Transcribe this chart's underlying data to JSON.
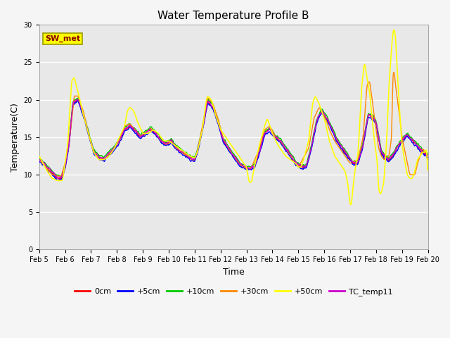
{
  "title": "Water Temperature Profile B",
  "xlabel": "Time",
  "ylabel": "Temperature(C)",
  "ylim": [
    0,
    30
  ],
  "yticks": [
    0,
    5,
    10,
    15,
    20,
    25,
    30
  ],
  "x_labels": [
    "Feb 5",
    "Feb 6",
    "Feb 7",
    "Feb 8",
    "Feb 9",
    "Feb 10",
    "Feb 11",
    "Feb 12",
    "Feb 13",
    "Feb 14",
    "Feb 15",
    "Feb 16",
    "Feb 17",
    "Feb 18",
    "Feb 19",
    "Feb 20"
  ],
  "legend_labels": [
    "0cm",
    "+5cm",
    "+10cm",
    "+30cm",
    "+50cm",
    "TC_temp11"
  ],
  "line_colors": [
    "#ff0000",
    "#0000ff",
    "#00cc00",
    "#ff8800",
    "#ffff00",
    "#cc00cc"
  ],
  "line_widths": [
    1.0,
    1.0,
    1.0,
    1.0,
    1.2,
    1.0
  ],
  "sw_met_box_facecolor": "#ffff00",
  "sw_met_box_edgecolor": "#999900",
  "sw_met_text_color": "#880000",
  "fig_facecolor": "#f2f2f2",
  "plot_bg_color": "#e8e8e8",
  "grid_color": "#ffffff",
  "title_fontsize": 11,
  "axis_label_fontsize": 9,
  "tick_fontsize": 7,
  "legend_fontsize": 8
}
